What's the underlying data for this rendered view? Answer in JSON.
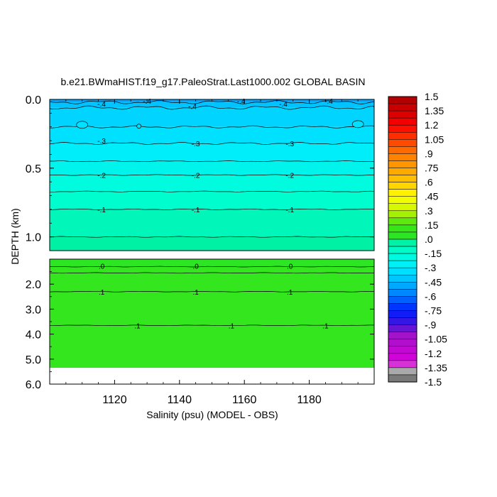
{
  "chart_data": {
    "type": "heatmap",
    "title": "b.e21.BWmaHIST.f19_g17.PaleoStrat.Last1000.002 GLOBAL BASIN",
    "xlabel": "Salinity (psu) (MODEL - OBS)",
    "ylabel": "DEPTH (km)",
    "x_range": [
      1100,
      1200
    ],
    "x_ticks": [
      1120,
      1140,
      1160,
      1180
    ],
    "x_tick_labels": [
      "1120",
      "1140",
      "1160",
      "1180"
    ],
    "upper_panel": {
      "depth_range": [
        0.0,
        1.1
      ],
      "y_ticks": [
        0.0,
        0.5,
        1.0
      ],
      "y_tick_labels": [
        "0.0",
        "0.5",
        "1.0"
      ],
      "bands": [
        {
          "top": 0.0,
          "bottom": 0.02,
          "value": -0.5
        },
        {
          "top": 0.02,
          "bottom": 0.06,
          "value": -0.42
        },
        {
          "top": 0.06,
          "bottom": 0.2,
          "value": -0.37
        },
        {
          "top": 0.2,
          "bottom": 0.32,
          "value": -0.33
        },
        {
          "top": 0.32,
          "bottom": 0.45,
          "value": -0.28
        },
        {
          "top": 0.45,
          "bottom": 0.55,
          "value": -0.23
        },
        {
          "top": 0.55,
          "bottom": 0.67,
          "value": -0.18
        },
        {
          "top": 0.67,
          "bottom": 0.8,
          "value": -0.13
        },
        {
          "top": 0.8,
          "bottom": 1.0,
          "value": -0.08
        },
        {
          "top": 1.0,
          "bottom": 1.1,
          "value": -0.03
        }
      ],
      "contours": [
        {
          "depth": 0.02,
          "value": -0.5
        },
        {
          "depth": 0.06,
          "value": -0.45
        },
        {
          "depth": 0.2,
          "value": -0.4
        },
        {
          "depth": 0.32,
          "value": -0.35
        },
        {
          "depth": 0.45,
          "value": -0.25
        },
        {
          "depth": 0.55,
          "value": -0.2
        },
        {
          "depth": 0.67,
          "value": -0.15
        },
        {
          "depth": 0.8,
          "value": -0.1
        },
        {
          "depth": 1.0,
          "value": -0.05
        }
      ],
      "labels": [
        {
          "x": 1116,
          "depth": 0.03,
          "text": "-.4"
        },
        {
          "x": 1130,
          "depth": 0.01,
          "text": "-.4"
        },
        {
          "x": 1144,
          "depth": 0.05,
          "text": "-.4"
        },
        {
          "x": 1159,
          "depth": 0.01,
          "text": "-.4"
        },
        {
          "x": 1172,
          "depth": 0.03,
          "text": "-.4"
        },
        {
          "x": 1186,
          "depth": 0.01,
          "text": "-.4"
        },
        {
          "x": 1116,
          "depth": 0.3,
          "text": "-.3"
        },
        {
          "x": 1145,
          "depth": 0.32,
          "text": "-.3"
        },
        {
          "x": 1174,
          "depth": 0.32,
          "text": "-.3"
        },
        {
          "x": 1116,
          "depth": 0.55,
          "text": "-.2"
        },
        {
          "x": 1145,
          "depth": 0.55,
          "text": "-.2"
        },
        {
          "x": 1174,
          "depth": 0.55,
          "text": "-.2"
        },
        {
          "x": 1116,
          "depth": 0.8,
          "text": "-.1"
        },
        {
          "x": 1145,
          "depth": 0.8,
          "text": "-.1"
        },
        {
          "x": 1174,
          "depth": 0.8,
          "text": "-.1"
        }
      ]
    },
    "lower_panel": {
      "depth_range": [
        1.0,
        6.0
      ],
      "y_ticks": [
        2.0,
        3.0,
        4.0,
        5.0,
        6.0
      ],
      "y_tick_labels": [
        "2.0",
        "3.0",
        "4.0",
        "5.0",
        "6.0"
      ],
      "data_bottom": 5.35,
      "bands": [
        {
          "top": 1.0,
          "bottom": 1.3,
          "value": 0.03
        },
        {
          "top": 1.3,
          "bottom": 5.35,
          "value": 0.08
        }
      ],
      "contours": [
        {
          "depth": 1.3,
          "value": 0.0
        },
        {
          "depth": 1.55,
          "value": 0.05
        },
        {
          "depth": 2.3,
          "value": 0.1
        },
        {
          "depth": 3.65,
          "value": 0.1
        }
      ],
      "labels": [
        {
          "x": 1116,
          "depth": 1.27,
          "text": ".0"
        },
        {
          "x": 1145,
          "depth": 1.27,
          "text": ".0"
        },
        {
          "x": 1174,
          "depth": 1.27,
          "text": ".0"
        },
        {
          "x": 1116,
          "depth": 2.3,
          "text": ".1"
        },
        {
          "x": 1145,
          "depth": 2.3,
          "text": ".1"
        },
        {
          "x": 1174,
          "depth": 2.3,
          "text": ".1"
        },
        {
          "x": 1127,
          "depth": 3.65,
          "text": ".1"
        },
        {
          "x": 1156,
          "depth": 3.65,
          "text": ".1"
        },
        {
          "x": 1185,
          "depth": 3.65,
          "text": ".1"
        }
      ]
    },
    "colorbar": {
      "min": -1.5,
      "max": 1.5,
      "step": 0.075,
      "labels": [
        "1.5",
        "1.35",
        "1.2",
        "1.05",
        ".9",
        ".75",
        ".6",
        ".45",
        ".3",
        ".15",
        ".0",
        "-.15",
        "-.3",
        "-.45",
        "-.6",
        "-.75",
        "-.9",
        "-1.05",
        "-1.2",
        "-1.35",
        "-1.5"
      ]
    }
  }
}
